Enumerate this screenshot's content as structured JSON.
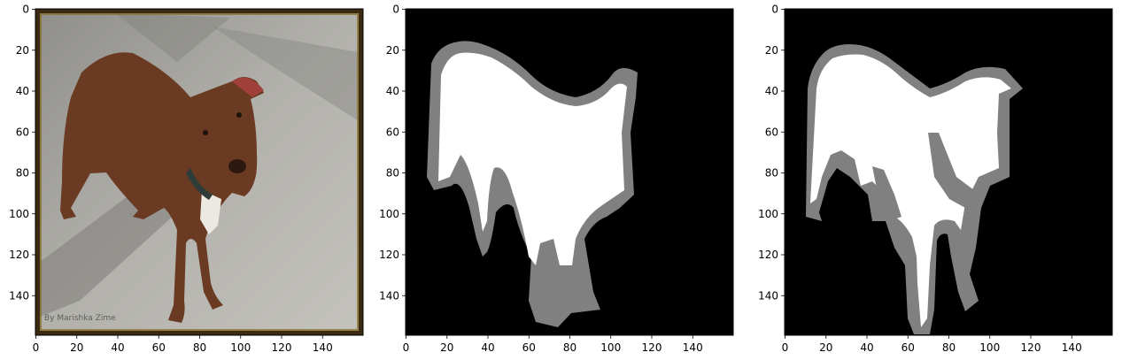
{
  "panels": [
    {
      "name": "photo",
      "kind": "image",
      "description_only": false,
      "x_ticks": [
        "0",
        "20",
        "40",
        "60",
        "80",
        "100",
        "120",
        "140"
      ],
      "y_ticks": [
        "0",
        "20",
        "40",
        "60",
        "80",
        "100",
        "120",
        "140"
      ],
      "watermark": "By Marishka Zime"
    },
    {
      "name": "ground-truth-mask",
      "kind": "mask",
      "x_ticks": [
        "0",
        "20",
        "40",
        "60",
        "80",
        "100",
        "120",
        "140"
      ],
      "y_ticks": [
        "0",
        "20",
        "40",
        "60",
        "80",
        "100",
        "120",
        "140"
      ]
    },
    {
      "name": "predicted-mask",
      "kind": "mask",
      "x_ticks": [
        "0",
        "20",
        "40",
        "60",
        "80",
        "100",
        "120",
        "140"
      ],
      "y_ticks": [
        "0",
        "20",
        "40",
        "60",
        "80",
        "100",
        "120",
        "140"
      ]
    }
  ],
  "colors": {
    "background": "#000000",
    "border_class": "#808080",
    "foreground_class": "#ffffff",
    "frame": "#3a2a12",
    "ground": "#a9a8a3",
    "dog": "#6a3b22"
  }
}
